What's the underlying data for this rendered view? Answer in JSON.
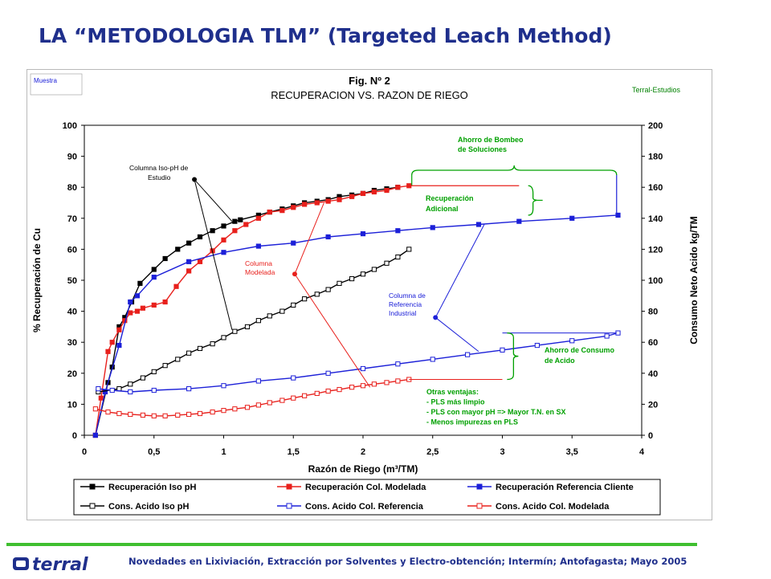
{
  "slide": {
    "title": "LA “METODOLOGIA TLM” (Targeted Leach Method)",
    "footer": "Novedades en Lixiviación, Extracción por Solventes y Electro-obtención; Intermín; Antofagasta; Mayo 2005",
    "logo_text": "terral"
  },
  "chart_data": {
    "type": "line",
    "top_left_tag": "Muestra",
    "top_right_tag": "Terral-Estudios",
    "title_line1": "Fig. Nº 2",
    "title_line2": "RECUPERACION VS. RAZON DE RIEGO",
    "xlabel": "Razón de Riego (m³/TM)",
    "ylabel_left": "% Recuperación de Cu",
    "ylabel_right": "Consumo Neto Acido kg/TM",
    "xlim": [
      0,
      4
    ],
    "ylim_left": [
      0,
      100
    ],
    "ylim_right": [
      0,
      200
    ],
    "x_ticks": [
      "0",
      "0,5",
      "1",
      "1,5",
      "2",
      "2,5",
      "3",
      "3,5",
      "4"
    ],
    "y_ticks_left": [
      "0",
      "10",
      "20",
      "30",
      "40",
      "50",
      "60",
      "70",
      "80",
      "90",
      "100"
    ],
    "y_ticks_right": [
      "0",
      "20",
      "40",
      "60",
      "80",
      "100",
      "120",
      "140",
      "160",
      "180",
      "200"
    ],
    "grid": false,
    "legend_position": "bottom",
    "colors": {
      "black": "#000000",
      "red": "#e8201c",
      "blue": "#1c20d8",
      "green": "#00a000",
      "frame_bg": "#ffffff"
    },
    "series": [
      {
        "name": "Recuperación Iso pH",
        "axis": "left",
        "color": "#000000",
        "marker": "filled-square",
        "x": [
          0.08,
          0.17,
          0.2,
          0.25,
          0.29,
          0.34,
          0.4,
          0.5,
          0.58,
          0.67,
          0.75,
          0.83,
          0.92,
          1.0,
          1.08,
          1.12,
          1.25,
          1.33,
          1.42,
          1.5,
          1.58,
          1.67,
          1.75,
          1.83,
          1.92,
          2.0,
          2.08,
          2.17,
          2.25
        ],
        "y": [
          0,
          17,
          22,
          35,
          38,
          43,
          49,
          53.5,
          57,
          60,
          62,
          64,
          66,
          67.5,
          69,
          69.5,
          71,
          72,
          73,
          74,
          75,
          75.5,
          76,
          77,
          77.5,
          78,
          79,
          79.5,
          80
        ]
      },
      {
        "name": "Recuperación Col. Modelada",
        "axis": "left",
        "color": "#e8201c",
        "marker": "filled-square",
        "x": [
          0.08,
          0.12,
          0.17,
          0.2,
          0.25,
          0.29,
          0.33,
          0.38,
          0.42,
          0.5,
          0.58,
          0.66,
          0.75,
          0.83,
          0.92,
          1.0,
          1.08,
          1.16,
          1.25,
          1.33,
          1.42,
          1.5,
          1.58,
          1.67,
          1.75,
          1.83,
          1.92,
          2.0,
          2.08,
          2.17,
          2.25,
          2.33
        ],
        "y": [
          0,
          12,
          27,
          30,
          34,
          37,
          39.5,
          40,
          41,
          42,
          43,
          48,
          53,
          56,
          59.5,
          63,
          66,
          68,
          70,
          72,
          72.5,
          73.5,
          74.5,
          75,
          75.5,
          76,
          77,
          78,
          78.5,
          79,
          80,
          80.5
        ]
      },
      {
        "name": "Recuperación Referencia Cliente",
        "axis": "left",
        "color": "#1c20d8",
        "marker": "filled-square",
        "x": [
          0.08,
          0.15,
          0.25,
          0.33,
          0.38,
          0.5,
          0.75,
          1.0,
          1.25,
          1.5,
          1.75,
          2.0,
          2.25,
          2.5,
          2.83,
          3.12,
          3.5,
          3.83
        ],
        "y": [
          0,
          14,
          29,
          43,
          45,
          51,
          56,
          59,
          61,
          62,
          64,
          65,
          66,
          67,
          68,
          69,
          70,
          71
        ]
      },
      {
        "name": "Cons. Acido Iso pH",
        "axis": "right",
        "color": "#000000",
        "marker": "open-square",
        "x": [
          0.1,
          0.25,
          0.33,
          0.42,
          0.5,
          0.58,
          0.67,
          0.75,
          0.83,
          0.92,
          1.0,
          1.08,
          1.17,
          1.25,
          1.33,
          1.42,
          1.5,
          1.58,
          1.67,
          1.75,
          1.83,
          1.92,
          2.0,
          2.08,
          2.17,
          2.25,
          2.33
        ],
        "y": [
          28,
          30,
          33,
          37,
          41,
          45,
          49,
          53,
          56,
          59,
          63,
          67,
          70,
          74,
          77,
          80,
          84,
          88,
          91,
          94,
          98,
          101,
          104,
          107,
          111,
          115,
          120
        ]
      },
      {
        "name": "Cons. Acido Col. Referencia",
        "axis": "right",
        "color": "#1c20d8",
        "marker": "open-square",
        "x": [
          0.1,
          0.2,
          0.33,
          0.5,
          0.75,
          1.0,
          1.25,
          1.5,
          1.75,
          2.0,
          2.25,
          2.5,
          2.75,
          3.0,
          3.25,
          3.5,
          3.75,
          3.83
        ],
        "y": [
          30,
          29,
          28,
          29,
          30,
          32,
          35,
          37,
          40,
          43,
          46,
          49,
          52,
          55,
          58,
          61,
          64,
          66
        ]
      },
      {
        "name": "Cons. Acido Col. Modelada",
        "axis": "right",
        "color": "#e8201c",
        "marker": "open-square",
        "x": [
          0.08,
          0.17,
          0.25,
          0.33,
          0.42,
          0.5,
          0.58,
          0.67,
          0.75,
          0.83,
          0.92,
          1.0,
          1.08,
          1.17,
          1.25,
          1.33,
          1.42,
          1.5,
          1.58,
          1.67,
          1.75,
          1.83,
          1.92,
          2.0,
          2.08,
          2.17,
          2.25,
          2.33
        ],
        "y": [
          17,
          15,
          14,
          13.5,
          13,
          12.5,
          12.5,
          13,
          13.5,
          14,
          15,
          16,
          17,
          18,
          19.5,
          21,
          22.5,
          24,
          25.5,
          27,
          28.5,
          29.5,
          31,
          32,
          33,
          34,
          35,
          36
        ]
      }
    ],
    "annotations": {
      "iso_ph_label": [
        "Columna Iso-pH de",
        "Estudio"
      ],
      "modelada_label": [
        "Columna",
        "Modelada"
      ],
      "referencia_label": [
        "Columna de",
        "Referencia",
        "Industrial"
      ],
      "ahorro_bombeo": [
        "Ahorro de Bombeo",
        "de Soluciones"
      ],
      "recuperacion_adicional": [
        "Recuperación",
        "Adicional"
      ],
      "ahorro_acido": [
        "Ahorro de Consumo",
        "de Acido"
      ],
      "otras_ventajas": [
        "Otras ventajas:",
        "- PLS más limpio",
        "- PLS con mayor pH => Mayor T.N. en SX",
        "- Menos impurezas en PLS"
      ]
    }
  }
}
